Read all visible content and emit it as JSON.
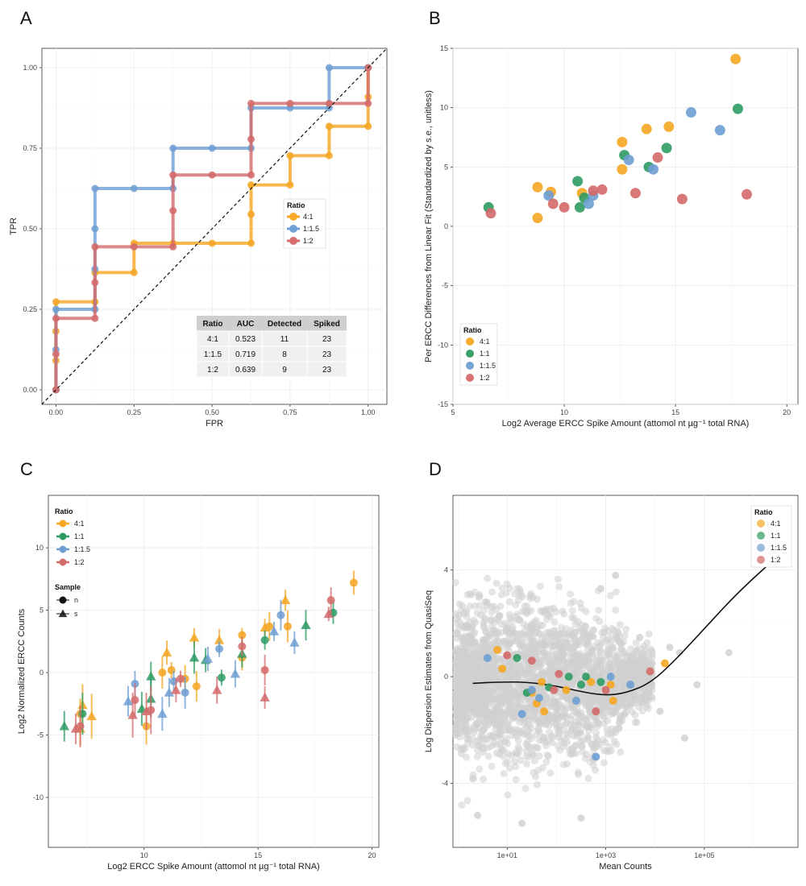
{
  "colors": {
    "4:1": "#f5a623",
    "1:1": "#2e9b63",
    "1:1.5": "#6e9fd3",
    "1:2": "#d46a6a",
    "grey": "#cfcfcf"
  },
  "chart_data": [
    {
      "panel": "A",
      "type": "line",
      "xlabel": "FPR",
      "ylabel": "TPR",
      "xlim": [
        0,
        1
      ],
      "ylim": [
        0,
        1
      ],
      "xticks": [
        "0.00",
        "0.25",
        "0.50",
        "0.75",
        "1.00"
      ],
      "yticks": [
        "0.00",
        "0.25",
        "0.50",
        "0.75",
        "1.00"
      ],
      "legend": {
        "title": "Ratio",
        "placement": "center-right",
        "items": [
          "4:1",
          "1:1.5",
          "1:2"
        ]
      },
      "series": [
        {
          "name": "4:1",
          "points": [
            [
              0,
              0
            ],
            [
              0,
              0.091
            ],
            [
              0,
              0.182
            ],
            [
              0,
              0.273
            ],
            [
              0.125,
              0.273
            ],
            [
              0.125,
              0.364
            ],
            [
              0.25,
              0.364
            ],
            [
              0.25,
              0.455
            ],
            [
              0.375,
              0.455
            ],
            [
              0.5,
              0.455
            ],
            [
              0.625,
              0.455
            ],
            [
              0.625,
              0.545
            ],
            [
              0.625,
              0.636
            ],
            [
              0.75,
              0.636
            ],
            [
              0.75,
              0.727
            ],
            [
              0.875,
              0.727
            ],
            [
              0.875,
              0.818
            ],
            [
              1,
              0.818
            ],
            [
              1,
              0.909
            ],
            [
              1,
              1
            ]
          ]
        },
        {
          "name": "1:1.5",
          "points": [
            [
              0,
              0
            ],
            [
              0,
              0.125
            ],
            [
              0,
              0.25
            ],
            [
              0.125,
              0.25
            ],
            [
              0.125,
              0.375
            ],
            [
              0.125,
              0.5
            ],
            [
              0.125,
              0.625
            ],
            [
              0.25,
              0.625
            ],
            [
              0.375,
              0.625
            ],
            [
              0.375,
              0.75
            ],
            [
              0.5,
              0.75
            ],
            [
              0.625,
              0.75
            ],
            [
              0.625,
              0.875
            ],
            [
              0.75,
              0.875
            ],
            [
              0.875,
              0.875
            ],
            [
              0.875,
              1
            ],
            [
              1,
              1
            ]
          ]
        },
        {
          "name": "1:2",
          "points": [
            [
              0,
              0
            ],
            [
              0,
              0.111
            ],
            [
              0,
              0.222
            ],
            [
              0.125,
              0.222
            ],
            [
              0.125,
              0.333
            ],
            [
              0.125,
              0.444
            ],
            [
              0.25,
              0.444
            ],
            [
              0.375,
              0.444
            ],
            [
              0.375,
              0.556
            ],
            [
              0.375,
              0.667
            ],
            [
              0.5,
              0.667
            ],
            [
              0.625,
              0.667
            ],
            [
              0.625,
              0.778
            ],
            [
              0.625,
              0.889
            ],
            [
              0.75,
              0.889
            ],
            [
              0.875,
              0.889
            ],
            [
              1,
              0.889
            ],
            [
              1,
              1
            ]
          ]
        }
      ],
      "table": {
        "headers": [
          "Ratio",
          "AUC",
          "Detected",
          "Spiked"
        ],
        "rows": [
          [
            "4:1",
            "0.523",
            "11",
            "23"
          ],
          [
            "1:1.5",
            "0.719",
            "8",
            "23"
          ],
          [
            "1:2",
            "0.639",
            "9",
            "23"
          ]
        ]
      }
    },
    {
      "panel": "B",
      "type": "scatter",
      "xlabel": "Log2 Average ERCC Spike Amount (attomol nt µg⁻¹ total RNA)",
      "ylabel": "Per ERCC Differences from Linear Fit (Standardized by s.e., unitless)",
      "xlim": [
        5,
        20.5
      ],
      "ylim": [
        -15,
        15
      ],
      "xticks": [
        5,
        10,
        15,
        20
      ],
      "yticks": [
        -15,
        -10,
        -5,
        0,
        5,
        10,
        15
      ],
      "legend": {
        "title": "Ratio",
        "placement": "bottom-left",
        "items": [
          "4:1",
          "1:1",
          "1:1.5",
          "1:2"
        ]
      },
      "series": [
        {
          "name": "4:1",
          "points": [
            [
              8.8,
              3.3
            ],
            [
              8.8,
              0.7
            ],
            [
              9.4,
              2.9
            ],
            [
              10.8,
              2.8
            ],
            [
              12.6,
              7.1
            ],
            [
              12.6,
              4.8
            ],
            [
              13.7,
              8.2
            ],
            [
              14.7,
              8.4
            ],
            [
              17.7,
              14.1
            ]
          ]
        },
        {
          "name": "1:1",
          "points": [
            [
              6.6,
              1.6
            ],
            [
              10.6,
              3.8
            ],
            [
              10.7,
              1.6
            ],
            [
              10.9,
              2.4
            ],
            [
              12.7,
              6.0
            ],
            [
              13.8,
              5.0
            ],
            [
              14.6,
              6.6
            ],
            [
              17.8,
              9.9
            ]
          ]
        },
        {
          "name": "1:1.5",
          "points": [
            [
              9.3,
              2.6
            ],
            [
              11.1,
              1.9
            ],
            [
              11.3,
              2.6
            ],
            [
              12.9,
              5.6
            ],
            [
              14.0,
              4.8
            ],
            [
              15.7,
              9.6
            ],
            [
              17.0,
              8.1
            ]
          ]
        },
        {
          "name": "1:2",
          "points": [
            [
              6.7,
              1.1
            ],
            [
              9.5,
              1.9
            ],
            [
              10.0,
              1.6
            ],
            [
              11.3,
              3.0
            ],
            [
              11.7,
              3.1
            ],
            [
              13.2,
              2.8
            ],
            [
              14.2,
              5.8
            ],
            [
              15.3,
              2.3
            ],
            [
              18.2,
              2.7
            ]
          ]
        }
      ]
    },
    {
      "panel": "C",
      "type": "scatter",
      "xlabel": "Log2 ERCC Spike Amount (attomol nt µg⁻¹ total RNA)",
      "ylabel": "Log2 Normalized ERCC Counts",
      "xlim": [
        5.8,
        20.3
      ],
      "ylim": [
        -14,
        14.2
      ],
      "xticks": [
        10,
        15,
        20
      ],
      "yticks": [
        -10,
        -5,
        0,
        5,
        10
      ],
      "legend": {
        "title": "Ratio",
        "items": [
          "4:1",
          "1:1",
          "1:1.5",
          "1:2"
        ],
        "sample_title": "Sample",
        "sample_items": [
          "n",
          "s"
        ]
      },
      "series": [
        {
          "name": "4:1",
          "points": [
            [
              7.2,
              -3.3,
              "n"
            ],
            [
              7.3,
              -2.6,
              "s"
            ],
            [
              7.2,
              -4.5,
              "s"
            ],
            [
              7.7,
              -3.5,
              "s"
            ],
            [
              10.1,
              -4.3,
              "n"
            ],
            [
              10.8,
              0.0,
              "n"
            ],
            [
              11.0,
              1.6,
              "s"
            ],
            [
              11.2,
              0.2,
              "n"
            ],
            [
              11.8,
              -0.5,
              "n"
            ],
            [
              12.2,
              2.8,
              "s"
            ],
            [
              12.3,
              -1.1,
              "n"
            ],
            [
              13.3,
              2.6,
              "s"
            ],
            [
              14.3,
              3.0,
              "n"
            ],
            [
              14.3,
              1.2,
              "n"
            ],
            [
              15.3,
              3.6,
              "s"
            ],
            [
              15.5,
              3.7,
              "n"
            ],
            [
              16.2,
              5.8,
              "s"
            ],
            [
              16.3,
              3.7,
              "n"
            ],
            [
              19.2,
              7.2,
              "n"
            ]
          ]
        },
        {
          "name": "1:1",
          "points": [
            [
              6.5,
              -4.3,
              "s"
            ],
            [
              7.3,
              -3.3,
              "n"
            ],
            [
              9.9,
              -2.9,
              "s"
            ],
            [
              10.3,
              -0.3,
              "s"
            ],
            [
              10.3,
              -2.1,
              "s"
            ],
            [
              12.2,
              1.2,
              "s"
            ],
            [
              12.7,
              1.0,
              "s"
            ],
            [
              13.4,
              -0.4,
              "n"
            ],
            [
              14.3,
              1.5,
              "s"
            ],
            [
              15.3,
              2.6,
              "n"
            ],
            [
              17.1,
              3.8,
              "s"
            ],
            [
              18.3,
              4.8,
              "n"
            ]
          ]
        },
        {
          "name": "1:1.5",
          "points": [
            [
              9.3,
              -2.3,
              "s"
            ],
            [
              9.6,
              -0.9,
              "n"
            ],
            [
              10.8,
              -3.3,
              "s"
            ],
            [
              11.1,
              -1.6,
              "s"
            ],
            [
              11.3,
              -0.7,
              "n"
            ],
            [
              11.8,
              -1.6,
              "n"
            ],
            [
              12.8,
              1.1,
              "s"
            ],
            [
              13.3,
              1.9,
              "n"
            ],
            [
              14.0,
              -0.1,
              "s"
            ],
            [
              15.7,
              3.3,
              "s"
            ],
            [
              16.0,
              4.6,
              "n"
            ],
            [
              16.6,
              2.4,
              "s"
            ]
          ]
        },
        {
          "name": "1:2",
          "points": [
            [
              7.0,
              -4.5,
              "s"
            ],
            [
              7.2,
              -4.3,
              "n"
            ],
            [
              9.6,
              -2.2,
              "n"
            ],
            [
              9.5,
              -3.4,
              "s"
            ],
            [
              10.1,
              -3.1,
              "s"
            ],
            [
              10.3,
              -3.0,
              "n"
            ],
            [
              11.4,
              -1.4,
              "s"
            ],
            [
              11.6,
              -0.5,
              "n"
            ],
            [
              13.2,
              -1.4,
              "s"
            ],
            [
              14.3,
              2.1,
              "n"
            ],
            [
              15.3,
              0.2,
              "n"
            ],
            [
              15.3,
              -2.0,
              "s"
            ],
            [
              18.1,
              4.7,
              "s"
            ],
            [
              18.2,
              5.8,
              "n"
            ]
          ]
        }
      ]
    },
    {
      "panel": "D",
      "type": "scatter",
      "xlabel": "Mean Counts",
      "ylabel": "Log Dispersion Estimates from QuasiSeq",
      "xscale": "log10",
      "xlim_log10": [
        -0.1,
        6.9
      ],
      "ylim": [
        -6.4,
        6.8
      ],
      "xticks": [
        "1e+01",
        "1e+03",
        "1e+05"
      ],
      "yticks": [
        "-4",
        "0",
        "4"
      ],
      "legend": {
        "title": "Ratio",
        "placement": "top-right",
        "items": [
          "4:1",
          "1:1",
          "1:1.5",
          "1:2"
        ]
      },
      "background": "dense grey cloud of all genes",
      "trend_line": [
        [
          0.3,
          -0.25
        ],
        [
          0.8,
          -0.2
        ],
        [
          1.4,
          -0.2
        ],
        [
          2.0,
          -0.35
        ],
        [
          2.6,
          -0.6
        ],
        [
          3.0,
          -0.7
        ],
        [
          3.4,
          -0.62
        ],
        [
          3.9,
          -0.25
        ],
        [
          4.4,
          0.6
        ],
        [
          5.0,
          1.8
        ],
        [
          5.7,
          3.2
        ],
        [
          6.6,
          4.7
        ]
      ],
      "series": [
        {
          "name": "4:1",
          "points": [
            [
              0.8,
              1.0
            ],
            [
              0.9,
              0.3
            ],
            [
              1.5,
              -0.6
            ],
            [
              1.6,
              -1.0
            ],
            [
              1.7,
              -0.2
            ],
            [
              1.75,
              -1.3
            ],
            [
              2.2,
              -0.5
            ],
            [
              2.7,
              -0.2
            ],
            [
              3.1,
              -0.3
            ],
            [
              3.15,
              -0.9
            ],
            [
              4.2,
              0.5
            ]
          ]
        },
        {
          "name": "1:1",
          "points": [
            [
              1.2,
              0.7
            ],
            [
              1.4,
              -0.6
            ],
            [
              1.85,
              -0.4
            ],
            [
              2.25,
              0.0
            ],
            [
              2.5,
              -0.3
            ],
            [
              2.6,
              0.0
            ],
            [
              2.9,
              -0.2
            ]
          ]
        },
        {
          "name": "1:1.5",
          "points": [
            [
              0.6,
              0.7
            ],
            [
              1.3,
              -1.4
            ],
            [
              1.5,
              -0.5
            ],
            [
              1.65,
              -0.8
            ],
            [
              2.4,
              -0.9
            ],
            [
              2.8,
              -3.0
            ],
            [
              3.1,
              0.0
            ],
            [
              3.5,
              -0.3
            ]
          ]
        },
        {
          "name": "1:2",
          "points": [
            [
              1.0,
              0.8
            ],
            [
              1.5,
              0.6
            ],
            [
              1.95,
              -0.5
            ],
            [
              2.05,
              0.1
            ],
            [
              2.8,
              -1.3
            ],
            [
              3.0,
              -0.5
            ],
            [
              3.9,
              0.2
            ]
          ]
        }
      ]
    }
  ]
}
